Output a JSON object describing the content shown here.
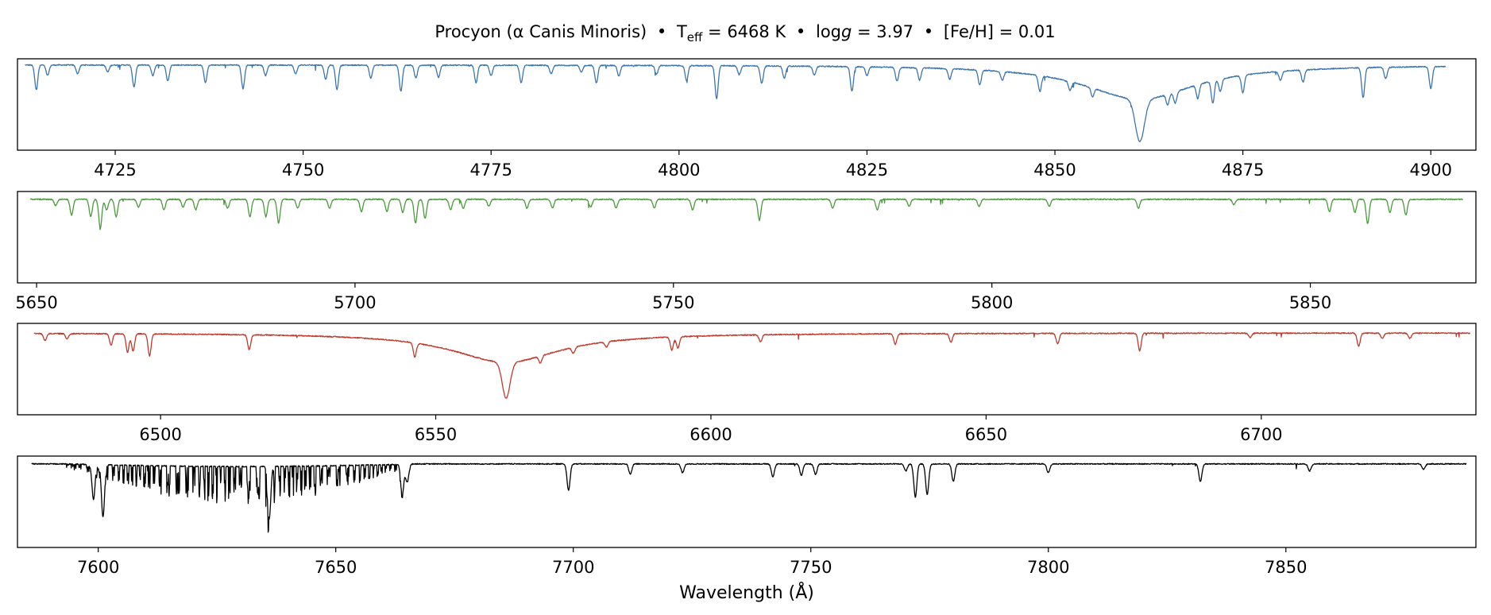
{
  "title": {
    "star": "Procyon (α Canis Minoris)",
    "sep": "•",
    "teff_label": "T",
    "teff_sub": "eff",
    "teff_value": " = 6468 K",
    "logg_prefix": "log",
    "logg_var": "g",
    "logg_value": " = 3.97",
    "feh": "[Fe/H] = 0.01"
  },
  "xlabel": "Wavelength (Å)",
  "colors": {
    "panel1": "#3b75af",
    "panel2": "#4a9a3c",
    "panel3": "#c0392b",
    "panel4": "#000000",
    "axes": "#000000",
    "background": "#ffffff"
  },
  "chart_data": [
    {
      "type": "line",
      "x_unit": "Å",
      "xlim": [
        4712,
        4906
      ],
      "ylim": [
        0.0,
        1.05
      ],
      "xticks": [
        4725,
        4750,
        4775,
        4800,
        4825,
        4850,
        4875,
        4900
      ],
      "yticks": [],
      "grid": false,
      "x_range": [
        4713,
        4902
      ],
      "continuum": 0.98,
      "lines": [
        [
          4714.5,
          0.28
        ],
        [
          4716,
          0.12
        ],
        [
          4720,
          0.1
        ],
        [
          4724,
          0.08
        ],
        [
          4727.5,
          0.25
        ],
        [
          4730,
          0.12
        ],
        [
          4732,
          0.18
        ],
        [
          4737,
          0.2
        ],
        [
          4742,
          0.27
        ],
        [
          4745,
          0.12
        ],
        [
          4749,
          0.1
        ],
        [
          4753,
          0.16
        ],
        [
          4754.5,
          0.28
        ],
        [
          4759,
          0.15
        ],
        [
          4763,
          0.3
        ],
        [
          4765,
          0.15
        ],
        [
          4768,
          0.14
        ],
        [
          4773,
          0.2
        ],
        [
          4775,
          0.12
        ],
        [
          4779,
          0.2
        ],
        [
          4783,
          0.1
        ],
        [
          4787,
          0.08
        ],
        [
          4789,
          0.2
        ],
        [
          4792,
          0.12
        ],
        [
          4797,
          0.1
        ],
        [
          4801,
          0.17
        ],
        [
          4805,
          0.38
        ],
        [
          4808,
          0.1
        ],
        [
          4811,
          0.2
        ],
        [
          4814,
          0.14
        ],
        [
          4818,
          0.1
        ],
        [
          4823,
          0.28
        ],
        [
          4825,
          0.1
        ],
        [
          4829,
          0.16
        ],
        [
          4832,
          0.14
        ],
        [
          4836,
          0.12
        ],
        [
          4840,
          0.17
        ],
        [
          4843,
          0.1
        ],
        [
          4848,
          0.18
        ],
        [
          4852,
          0.1
        ],
        [
          4855,
          0.1
        ],
        [
          4865,
          0.12
        ],
        [
          4866,
          0.13
        ],
        [
          4869,
          0.16
        ],
        [
          4871,
          0.26
        ],
        [
          4872,
          0.14
        ],
        [
          4875,
          0.2
        ],
        [
          4880,
          0.1
        ],
        [
          4883,
          0.14
        ],
        [
          4891,
          0.34
        ],
        [
          4894,
          0.13
        ],
        [
          4900,
          0.25
        ]
      ],
      "broad_lines": [
        {
          "center": 4861.3,
          "depth": 0.88,
          "core_width": 0.6,
          "wing_width": 9
        }
      ]
    },
    {
      "type": "line",
      "x_unit": "Å",
      "xlim": [
        5647,
        5876
      ],
      "ylim": [
        0.0,
        1.05
      ],
      "xticks": [
        5650,
        5700,
        5750,
        5800,
        5850
      ],
      "yticks": [],
      "grid": false,
      "x_range": [
        5649,
        5874
      ],
      "continuum": 0.96,
      "lines": [
        [
          5653,
          0.07
        ],
        [
          5655.5,
          0.18
        ],
        [
          5658.5,
          0.2
        ],
        [
          5660,
          0.33
        ],
        [
          5661,
          0.12
        ],
        [
          5662.5,
          0.2
        ],
        [
          5666,
          0.09
        ],
        [
          5670,
          0.12
        ],
        [
          5673,
          0.09
        ],
        [
          5675,
          0.12
        ],
        [
          5680,
          0.1
        ],
        [
          5683.5,
          0.2
        ],
        [
          5686,
          0.2
        ],
        [
          5688,
          0.27
        ],
        [
          5691,
          0.1
        ],
        [
          5696,
          0.1
        ],
        [
          5701,
          0.14
        ],
        [
          5705,
          0.14
        ],
        [
          5707.5,
          0.15
        ],
        [
          5709.5,
          0.27
        ],
        [
          5711,
          0.22
        ],
        [
          5715,
          0.12
        ],
        [
          5717,
          0.1
        ],
        [
          5721,
          0.08
        ],
        [
          5727,
          0.1
        ],
        [
          5731,
          0.1
        ],
        [
          5737,
          0.09
        ],
        [
          5741,
          0.1
        ],
        [
          5747,
          0.1
        ],
        [
          5753,
          0.12
        ],
        [
          5763.5,
          0.24
        ],
        [
          5775,
          0.1
        ],
        [
          5782,
          0.12
        ],
        [
          5787,
          0.08
        ],
        [
          5798,
          0.08
        ],
        [
          5809,
          0.08
        ],
        [
          5823,
          0.1
        ],
        [
          5838,
          0.06
        ],
        [
          5853,
          0.14
        ],
        [
          5857,
          0.15
        ],
        [
          5859,
          0.28
        ],
        [
          5862.5,
          0.15
        ],
        [
          5865,
          0.18
        ]
      ],
      "broad_lines": []
    },
    {
      "type": "line",
      "x_unit": "Å",
      "xlim": [
        6474,
        6739
      ],
      "ylim": [
        0.0,
        1.05
      ],
      "xticks": [
        6500,
        6550,
        6600,
        6650,
        6700
      ],
      "yticks": [],
      "grid": false,
      "x_range": [
        6477,
        6738
      ],
      "continuum": 0.94,
      "lines": [
        [
          6479,
          0.08
        ],
        [
          6483,
          0.06
        ],
        [
          6491,
          0.13
        ],
        [
          6494,
          0.21
        ],
        [
          6495,
          0.2
        ],
        [
          6498,
          0.25
        ],
        [
          6516.1,
          0.17
        ],
        [
          6546.2,
          0.16
        ],
        [
          6569,
          0.08
        ],
        [
          6575,
          0.07
        ],
        [
          6581,
          0.06
        ],
        [
          6592.9,
          0.15
        ],
        [
          6594,
          0.13
        ],
        [
          6609,
          0.08
        ],
        [
          6633.5,
          0.12
        ],
        [
          6643.6,
          0.1
        ],
        [
          6663,
          0.12
        ],
        [
          6677.9,
          0.2
        ],
        [
          6698,
          0.05
        ],
        [
          6717.7,
          0.15
        ],
        [
          6722,
          0.06
        ],
        [
          6727,
          0.06
        ]
      ],
      "broad_lines": [
        {
          "center": 6562.8,
          "depth": 0.75,
          "core_width": 0.7,
          "wing_width": 12
        }
      ]
    },
    {
      "type": "line",
      "x_unit": "Å",
      "xlim": [
        7583,
        7890
      ],
      "ylim": [
        0.0,
        1.05
      ],
      "xticks": [
        7600,
        7650,
        7700,
        7750,
        7800,
        7850
      ],
      "yticks": [],
      "grid": false,
      "x_range": [
        7586,
        7888
      ],
      "continuum": 0.96,
      "lines": [
        [
          7599,
          0.4
        ],
        [
          7601,
          0.6
        ],
        [
          7636,
          0.6
        ],
        [
          7664,
          0.35
        ],
        [
          7699,
          0.3
        ],
        [
          7665,
          0.2
        ],
        [
          7712,
          0.12
        ],
        [
          7723,
          0.1
        ],
        [
          7742,
          0.15
        ],
        [
          7748,
          0.13
        ],
        [
          7751,
          0.12
        ],
        [
          7770,
          0.08
        ],
        [
          7772,
          0.38
        ],
        [
          7774.5,
          0.35
        ],
        [
          7780,
          0.2
        ],
        [
          7800,
          0.1
        ],
        [
          7832,
          0.2
        ],
        [
          7855,
          0.08
        ],
        [
          7879,
          0.06
        ]
      ],
      "broad_lines": [],
      "band": {
        "start": 7593,
        "end": 7667,
        "mean_depth": 0.2
      }
    }
  ]
}
